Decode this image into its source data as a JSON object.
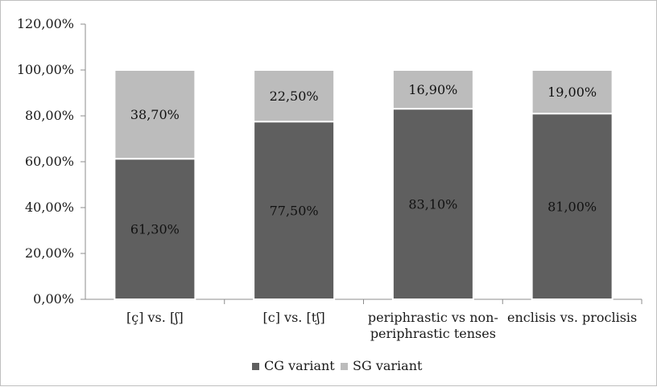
{
  "chart_data": {
    "type": "bar",
    "stacked": true,
    "categories": [
      [
        "[ç]  vs. [ʃ]"
      ],
      [
        "[c] vs. [tʃ]"
      ],
      [
        "periphrastic vs non-",
        "periphrastic tenses"
      ],
      [
        "enclisis vs. proclisis"
      ]
    ],
    "series": [
      {
        "name": "CG variant",
        "values": [
          61.3,
          77.5,
          83.1,
          81.0
        ],
        "labels": [
          "61,30%",
          "77,50%",
          "83,10%",
          "81,00%"
        ],
        "color": "#5f5f5f"
      },
      {
        "name": "SG variant",
        "values": [
          38.7,
          22.5,
          16.9,
          19.0
        ],
        "labels": [
          "38,70%",
          "22,50%",
          "16,90%",
          "19,00%"
        ],
        "color": "#bcbcbc"
      }
    ],
    "ylim": [
      0,
      120
    ],
    "yticks": [
      "0,00%",
      "20,00%",
      "40,00%",
      "60,00%",
      "80,00%",
      "100,00%",
      "120,00%"
    ],
    "grid": false,
    "legend_position": "bottom",
    "title": "",
    "xlabel": "",
    "ylabel": ""
  }
}
